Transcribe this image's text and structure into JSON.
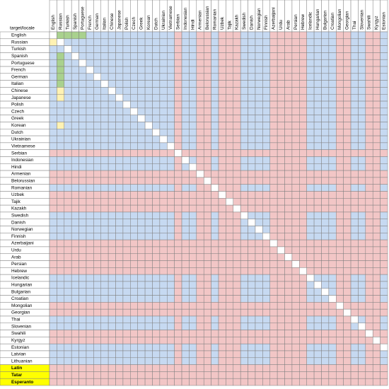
{
  "sheet": {
    "corner": "target/locale",
    "blue": "#c6d9f1",
    "pink": "#f2c6c6",
    "diagonal": "#ffffff",
    "columns": [
      {
        "label": "English",
        "color": "blue"
      },
      {
        "label": "Russian",
        "color": "blue"
      },
      {
        "label": "Turkish",
        "color": "blue"
      },
      {
        "label": "Spanish",
        "color": "blue"
      },
      {
        "label": "Portuguese",
        "color": "blue"
      },
      {
        "label": "French",
        "color": "blue"
      },
      {
        "label": "German",
        "color": "blue"
      },
      {
        "label": "Italian",
        "color": "blue"
      },
      {
        "label": "Chinese",
        "color": "blue"
      },
      {
        "label": "Japanese",
        "color": "blue"
      },
      {
        "label": "Polish",
        "color": "blue"
      },
      {
        "label": "Czech",
        "color": "blue"
      },
      {
        "label": "Greek",
        "color": "blue"
      },
      {
        "label": "Korean",
        "color": "blue"
      },
      {
        "label": "Dutch",
        "color": "blue"
      },
      {
        "label": "Ukrainian",
        "color": "blue"
      },
      {
        "label": "Vietnamese",
        "color": "blue"
      },
      {
        "label": "Serbian",
        "color": "pink"
      },
      {
        "label": "Indonesian",
        "color": "blue"
      },
      {
        "label": "Hindi",
        "color": "blue"
      },
      {
        "label": "Armenian",
        "color": "pink"
      },
      {
        "label": "Belorussian",
        "color": "pink"
      },
      {
        "label": "Romanian",
        "color": "blue"
      },
      {
        "label": "Uzbek",
        "color": "pink"
      },
      {
        "label": "Tajik",
        "color": "pink"
      },
      {
        "label": "Kazakh",
        "color": "pink"
      },
      {
        "label": "Swedish",
        "color": "blue"
      },
      {
        "label": "Danish",
        "color": "blue"
      },
      {
        "label": "Norwegian",
        "color": "blue"
      },
      {
        "label": "Finnish",
        "color": "blue"
      },
      {
        "label": "Azerbaijani",
        "color": "pink"
      },
      {
        "label": "Urdu",
        "color": "pink"
      },
      {
        "label": "Arab",
        "color": "pink"
      },
      {
        "label": "Persian",
        "color": "pink"
      },
      {
        "label": "Hebrew",
        "color": "pink"
      },
      {
        "label": "Icelandic",
        "color": "blue"
      },
      {
        "label": "Hungarian",
        "color": "blue"
      },
      {
        "label": "Bulgarian",
        "color": "blue"
      },
      {
        "label": "Croatian",
        "color": "blue"
      },
      {
        "label": "Mongolian",
        "color": "pink"
      },
      {
        "label": "Georgian",
        "color": "pink"
      },
      {
        "label": "Thai",
        "color": "blue"
      },
      {
        "label": "Slovenian",
        "color": "blue"
      },
      {
        "label": "Swahili",
        "color": "pink"
      },
      {
        "label": "Kyrgyz",
        "color": "pink"
      },
      {
        "label": "Estonian",
        "color": "blue"
      }
    ],
    "rows": [
      {
        "label": "English",
        "color": "blue"
      },
      {
        "label": "Russian",
        "color": "blue"
      },
      {
        "label": "Turkish",
        "color": "blue"
      },
      {
        "label": "Spanish",
        "color": "blue"
      },
      {
        "label": "Portuguese",
        "color": "blue"
      },
      {
        "label": "French",
        "color": "blue"
      },
      {
        "label": "German",
        "color": "blue"
      },
      {
        "label": "Italian",
        "color": "blue"
      },
      {
        "label": "Chinese",
        "color": "blue"
      },
      {
        "label": "Japanese",
        "color": "blue"
      },
      {
        "label": "Polish",
        "color": "blue"
      },
      {
        "label": "Czech",
        "color": "blue"
      },
      {
        "label": "Greek",
        "color": "blue"
      },
      {
        "label": "Korean",
        "color": "blue"
      },
      {
        "label": "Dutch",
        "color": "blue"
      },
      {
        "label": "Ukrainian",
        "color": "blue"
      },
      {
        "label": "Vietnamese",
        "color": "blue"
      },
      {
        "label": "Serbian",
        "color": "pink"
      },
      {
        "label": "Indonesian",
        "color": "blue"
      },
      {
        "label": "Hindi",
        "color": "blue"
      },
      {
        "label": "Armenian",
        "color": "pink"
      },
      {
        "label": "Belorussian",
        "color": "pink"
      },
      {
        "label": "Romanian",
        "color": "blue"
      },
      {
        "label": "Uzbek",
        "color": "pink"
      },
      {
        "label": "Tajik",
        "color": "pink"
      },
      {
        "label": "Kazakh",
        "color": "pink"
      },
      {
        "label": "Swedish",
        "color": "blue"
      },
      {
        "label": "Danish",
        "color": "blue"
      },
      {
        "label": "Norwegian",
        "color": "blue"
      },
      {
        "label": "Finnish",
        "color": "blue"
      },
      {
        "label": "Azerbaijani",
        "color": "pink"
      },
      {
        "label": "Urdu",
        "color": "pink"
      },
      {
        "label": "Arab",
        "color": "pink"
      },
      {
        "label": "Persian",
        "color": "pink"
      },
      {
        "label": "Hebrew",
        "color": "pink"
      },
      {
        "label": "Icelandic",
        "color": "blue"
      },
      {
        "label": "Hungarian",
        "color": "blue"
      },
      {
        "label": "Bulgarian",
        "color": "blue"
      },
      {
        "label": "Croatian",
        "color": "blue"
      },
      {
        "label": "Mongolian",
        "color": "pink"
      },
      {
        "label": "Georgian",
        "color": "pink"
      },
      {
        "label": "Thai",
        "color": "blue"
      },
      {
        "label": "Slovenian",
        "color": "blue"
      },
      {
        "label": "Swahili",
        "color": "pink"
      },
      {
        "label": "Kyrgyz",
        "color": "pink"
      },
      {
        "label": "Estonian",
        "color": "blue"
      },
      {
        "label": "Latvian",
        "color": "blue"
      },
      {
        "label": "Lithuanian",
        "color": "blue"
      },
      {
        "label": "Latin",
        "color": "pink",
        "label_fill": "#ffff00",
        "bold": true
      },
      {
        "label": "Tatar",
        "color": "pink",
        "label_fill": "#ffff00",
        "bold": true
      },
      {
        "label": "Esperanto",
        "color": "pink",
        "label_fill": "#ffff00",
        "bold": true
      }
    ],
    "highlights": [
      {
        "row": 0,
        "col": 1,
        "color": "#a9d18e"
      },
      {
        "row": 0,
        "col": 2,
        "color": "#a9d18e"
      },
      {
        "row": 0,
        "col": 3,
        "color": "#a9d18e"
      },
      {
        "row": 0,
        "col": 4,
        "color": "#a9d18e"
      },
      {
        "row": 1,
        "col": 0,
        "color": "#fff2b3"
      },
      {
        "row": 3,
        "col": 1,
        "color": "#a9d18e"
      },
      {
        "row": 4,
        "col": 1,
        "color": "#a9d18e"
      },
      {
        "row": 5,
        "col": 1,
        "color": "#a9d18e"
      },
      {
        "row": 6,
        "col": 1,
        "color": "#a9d18e"
      },
      {
        "row": 7,
        "col": 1,
        "color": "#a9d18e"
      },
      {
        "row": 8,
        "col": 1,
        "color": "#fff2b3"
      },
      {
        "row": 9,
        "col": 1,
        "color": "#fff2b3"
      },
      {
        "row": 13,
        "col": 1,
        "color": "#fff2b3"
      }
    ]
  }
}
